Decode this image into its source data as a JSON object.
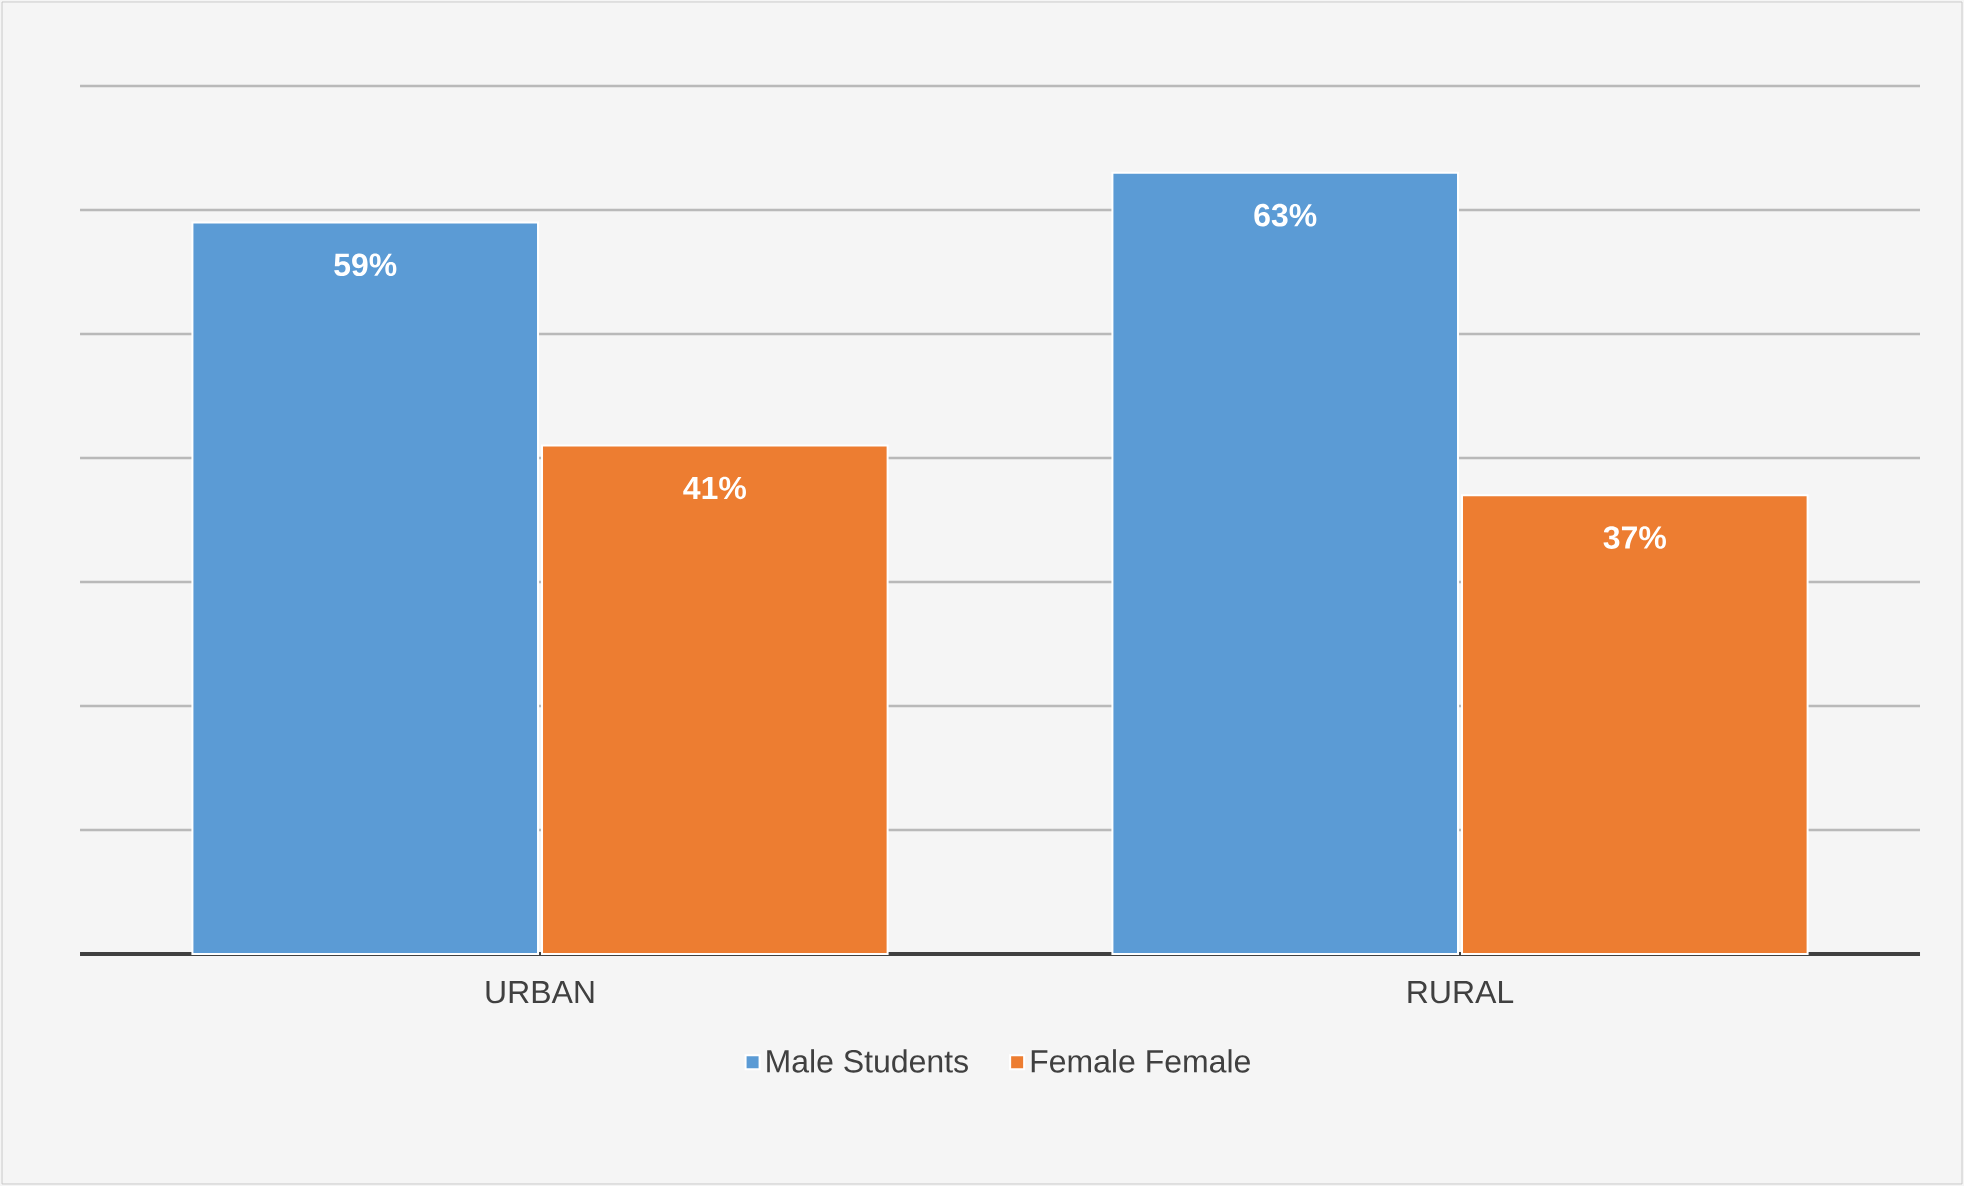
{
  "chart_data": {
    "type": "bar",
    "categories": [
      "URBAN",
      "RURAL"
    ],
    "series": [
      {
        "name": "Male Students",
        "color": "#5b9bd5",
        "values": [
          59,
          63
        ],
        "value_labels": [
          "59%",
          "63%"
        ]
      },
      {
        "name": "Female Female",
        "color": "#ed7d31",
        "values": [
          41,
          37
        ],
        "value_labels": [
          "41%",
          "37%"
        ]
      }
    ],
    "yticks": [
      {
        "value": 0,
        "label": null
      },
      {
        "value": 10,
        "label": null
      },
      {
        "value": 20,
        "label": null
      },
      {
        "value": 30,
        "label": null
      },
      {
        "value": 40,
        "label": null
      },
      {
        "value": 50,
        "label": null
      },
      {
        "value": 60,
        "label": null
      },
      {
        "value": 70,
        "label": null
      }
    ],
    "grid": "y",
    "legend": "bottom",
    "tick_labels": "x"
  }
}
